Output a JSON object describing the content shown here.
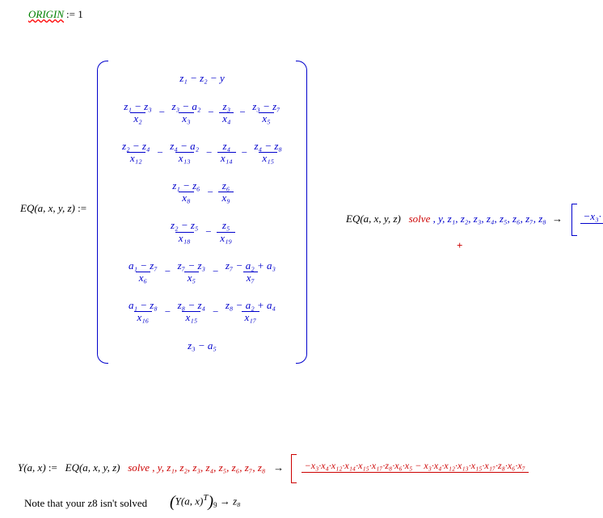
{
  "colors": {
    "origin_text": "#008000",
    "math_main": "#0000cc",
    "solve_kw": "#cc0000",
    "text_black": "#000000",
    "background": "#ffffff"
  },
  "typography": {
    "font_family": "Times New Roman",
    "base_size_pt": 10,
    "italic_for_math": true
  },
  "origin": {
    "label": "ORIGIN",
    "assign": ":=",
    "value": "1"
  },
  "eq_def": {
    "lhs": "EQ(a, x, y, z)",
    "assign": ":="
  },
  "matrix_rows": {
    "r1": "z₁ − z₂ − y",
    "r2a_num": "z₁ − z₃",
    "r2a_den": "x₂",
    "r2b_num": "z₃ − a₂",
    "r2b_den": "x₃",
    "r2c_num": "z₃",
    "r2c_den": "x₄",
    "r2d_num": "z₃ − z₇",
    "r2d_den": "x₅",
    "r3a_num": "z₂ − z₄",
    "r3a_den": "x₁₂",
    "r3b_num": "z₄ − a₂",
    "r3b_den": "x₁₃",
    "r3c_num": "z₄",
    "r3c_den": "x₁₄",
    "r3d_num": "z₄ − z₈",
    "r3d_den": "x₁₅",
    "r4a_num": "z₁ − z₆",
    "r4a_den": "x₈",
    "r4b_num": "z₆",
    "r4b_den": "x₉",
    "r5a_num": "z₂ − z₅",
    "r5a_den": "x₁₈",
    "r5b_num": "z₅",
    "r5b_den": "x₁₉",
    "r6a_num": "a₁ − z₇",
    "r6a_den": "x₆",
    "r6b_num": "z₇ − z₃",
    "r6b_den": "x₅",
    "r6c_num": "z₇ − a₂ + a₃",
    "r6c_den": "x₇",
    "r7a_num": "a₁ − z₈",
    "r7a_den": "x₁₆",
    "r7b_num": "z₈ − z₄",
    "r7b_den": "x₁₅",
    "r7c_num": "z₈ − a₂ + a₄",
    "r7c_den": "x₁₇",
    "r8": "z₃ − a₅",
    "minus": "−"
  },
  "solve1": {
    "prefix": "EQ(a, x, y, z)",
    "solve_kw": "solve",
    "vars": ", y, z₁, z₂, z₃, z₄, z₅, z₆, z₇, z₈",
    "arrow": "→",
    "result_num": "−x₃·",
    "plus": "+"
  },
  "y_def": {
    "lhs": "Y(a, x)",
    "assign": ":=",
    "prefix": "EQ(a, x, y, z)",
    "solve_kw": "solve",
    "vars": ", y, z₁, z₂, z₃, z₄, z₅, z₆, z₇, z₈",
    "arrow": "→",
    "result_num": "−x₃·x₄·x₁₂·x₁₄·x₁₅·x₁₇·z₈·x₆·x₅ − x₃·x₄·x₁₂·x₁₃·x₁₅·x₁₇·z₈·x₆·x₇"
  },
  "note": {
    "text": "Note that your z8 isn't solved",
    "expr_l": "(",
    "expr_body": "Y(a, x)",
    "expr_sup": "T",
    "expr_r": ")",
    "expr_sub": "9",
    "arrow": "→",
    "rhs": "z₈"
  }
}
